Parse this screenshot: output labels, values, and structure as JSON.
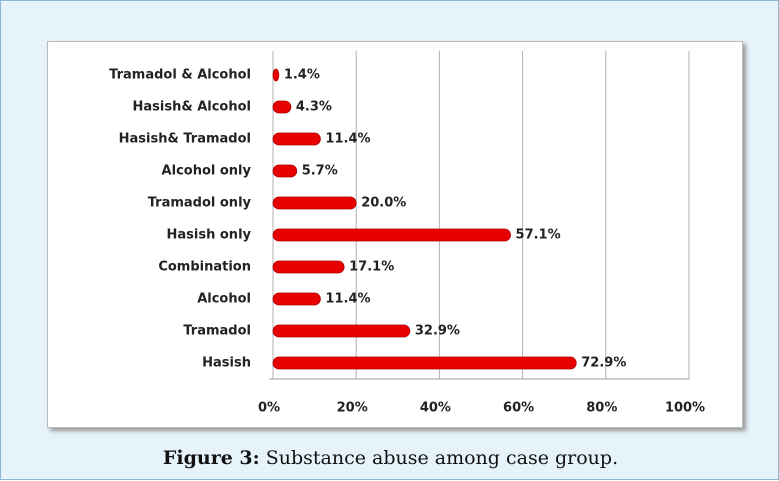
{
  "chart_data": {
    "type": "bar",
    "orientation": "horizontal",
    "categories": [
      "Tramadol & Alcohol",
      "Hasish& Alcohol",
      "Hasish& Tramadol",
      "Alcohol only",
      "Tramadol only",
      "Hasish only",
      "Combination",
      "Alcohol",
      "Tramadol",
      "Hasish"
    ],
    "values": [
      1.4,
      4.3,
      11.4,
      5.7,
      20.0,
      57.1,
      17.1,
      11.4,
      32.9,
      72.9
    ],
    "value_labels": [
      "1.4%",
      "4.3%",
      "11.4%",
      "5.7%",
      "20.0%",
      "57.1%",
      "17.1%",
      "11.4%",
      "32.9%",
      "72.9%"
    ],
    "color": "#e60000",
    "xlim": [
      0,
      100
    ],
    "xticks": [
      {
        "value": 0,
        "label": "0%"
      },
      {
        "value": 20,
        "label": "20%"
      },
      {
        "value": 40,
        "label": "40%"
      },
      {
        "value": 60,
        "label": "60%"
      },
      {
        "value": 80,
        "label": "80%"
      },
      {
        "value": 100,
        "label": "100%"
      }
    ],
    "grid": true
  },
  "caption": {
    "label": "Figure 3:",
    "text": "Substance abuse among case group."
  }
}
